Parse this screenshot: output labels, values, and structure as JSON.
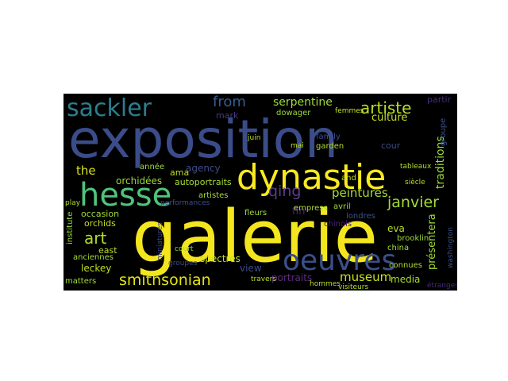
{
  "wordcloud": {
    "words": [
      {
        "text": "exposition",
        "color": "#3b4c8a"
      },
      {
        "text": "galerie",
        "color": "#f4e61e"
      },
      {
        "text": "dynastie",
        "color": "#f9e91f"
      },
      {
        "text": "hesse",
        "color": "#4fc47b"
      },
      {
        "text": "sackler",
        "color": "#2c7e8e"
      },
      {
        "text": "oeuvres",
        "color": "#3c4f8a"
      },
      {
        "text": "smithsonian",
        "color": "#e3e418"
      },
      {
        "text": "artiste",
        "color": "#b5de2b"
      },
      {
        "text": "janvier",
        "color": "#a2da37"
      },
      {
        "text": "serpentine",
        "color": "#9fda3a"
      },
      {
        "text": "from",
        "color": "#365c8d"
      },
      {
        "text": "qing",
        "color": "#5c3b8f"
      },
      {
        "text": "art",
        "color": "#b0dd2f"
      },
      {
        "text": "peintures",
        "color": "#a8db34"
      },
      {
        "text": "museum",
        "color": "#c8e020"
      },
      {
        "text": "culture",
        "color": "#c5e021"
      },
      {
        "text": "the",
        "color": "#d8e219"
      },
      {
        "text": "orchidées",
        "color": "#9fda3a"
      },
      {
        "text": "mark",
        "color": "#44397f"
      },
      {
        "text": "agency",
        "color": "#3e4c8a"
      },
      {
        "text": "autoportraits",
        "color": "#a5db36"
      },
      {
        "text": "ama",
        "color": "#c0df25"
      },
      {
        "text": "orchids",
        "color": "#c2df23"
      },
      {
        "text": "occasion",
        "color": "#a2da37"
      },
      {
        "text": "east",
        "color": "#bddf26"
      },
      {
        "text": "leckey",
        "color": "#c0df25"
      },
      {
        "text": "anciennes",
        "color": "#a5db36"
      },
      {
        "text": "spectres",
        "color": "#c2df23"
      },
      {
        "text": "view",
        "color": "#3e4a89"
      },
      {
        "text": "portraits",
        "color": "#5d2c7e"
      },
      {
        "text": "fin",
        "color": "#482878"
      },
      {
        "text": "eva",
        "color": "#b8de29"
      },
      {
        "text": "brooklin",
        "color": "#9dd93b"
      },
      {
        "text": "china",
        "color": "#a0da39"
      },
      {
        "text": "media",
        "color": "#a8db34"
      },
      {
        "text": "matters",
        "color": "#a2da37"
      },
      {
        "text": "traditions",
        "color": "#9dd93b"
      },
      {
        "text": "présentera",
        "color": "#a0da39"
      },
      {
        "text": "groupe",
        "color": "#3a548c"
      },
      {
        "text": "partir",
        "color": "#472d7b"
      },
      {
        "text": "dowager",
        "color": "#9fda3a"
      },
      {
        "text": "femmes",
        "color": "#c5e021"
      },
      {
        "text": "family",
        "color": "#3c4f8a"
      },
      {
        "text": "garden",
        "color": "#b2dd2d"
      },
      {
        "text": "mai",
        "color": "#c0df25"
      },
      {
        "text": "juin",
        "color": "#bddf26"
      },
      {
        "text": "année",
        "color": "#9fda3a"
      },
      {
        "text": "artistes",
        "color": "#a8db34"
      },
      {
        "text": "performances",
        "color": "#3d4e8a"
      },
      {
        "text": "groupes",
        "color": "#3f4889"
      },
      {
        "text": "fleurs",
        "color": "#a5db36"
      },
      {
        "text": "empress",
        "color": "#b0dd2f"
      },
      {
        "text": "avril",
        "color": "#a0da39"
      },
      {
        "text": "londres",
        "color": "#3b528b"
      },
      {
        "text": "chinois",
        "color": "#482173"
      },
      {
        "text": "connues",
        "color": "#b2dd2d"
      },
      {
        "text": "visiteurs",
        "color": "#b5de2b"
      },
      {
        "text": "institute",
        "color": "#9dd93b"
      },
      {
        "text": "play",
        "color": "#b5de2b"
      },
      {
        "text": "siècle",
        "color": "#b8de29"
      },
      {
        "text": "tableaux",
        "color": "#b0dd2f"
      },
      {
        "text": "washington",
        "color": "#3c4f8a"
      },
      {
        "text": "étranges",
        "color": "#482979"
      },
      {
        "text": "cour",
        "color": "#3e4a89"
      },
      {
        "text": "travers",
        "color": "#b8de29"
      },
      {
        "text": "hommes",
        "color": "#b2dd2d"
      },
      {
        "text": "and",
        "color": "#c2df23"
      },
      {
        "text": "court",
        "color": "#a5db36"
      },
      {
        "text": "miniatures",
        "color": "#3e4989"
      }
    ]
  }
}
